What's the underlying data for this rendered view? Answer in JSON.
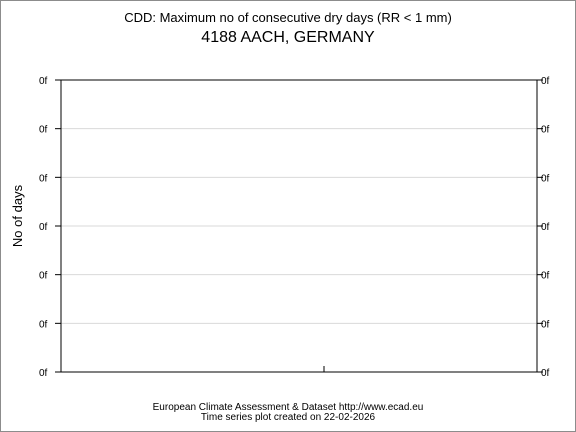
{
  "chart_data": {
    "type": "line",
    "title": "CDD: Maximum no of consecutive dry days (RR < 1 mm)",
    "subtitle": "4188 AACH, GERMANY",
    "xlabel": "",
    "ylabel": "No of days",
    "y_ticks": [
      "0f",
      "0f",
      "0f",
      "0f",
      "0f",
      "0f",
      "0f"
    ],
    "right_y_ticks": [
      "0f",
      "0f",
      "0f",
      "0f",
      "0f",
      "0f",
      "0f"
    ],
    "series": [],
    "grid": true,
    "legend": "none"
  },
  "footer": {
    "source": "European Climate Assessment & Dataset  http://www.ecad.eu",
    "created": "Time series plot created on 22-02-2026"
  },
  "colors": {
    "background": "#ffffff",
    "axis": "#000000",
    "grid": "#d9d9d9",
    "frame": "#8c8c8c"
  }
}
